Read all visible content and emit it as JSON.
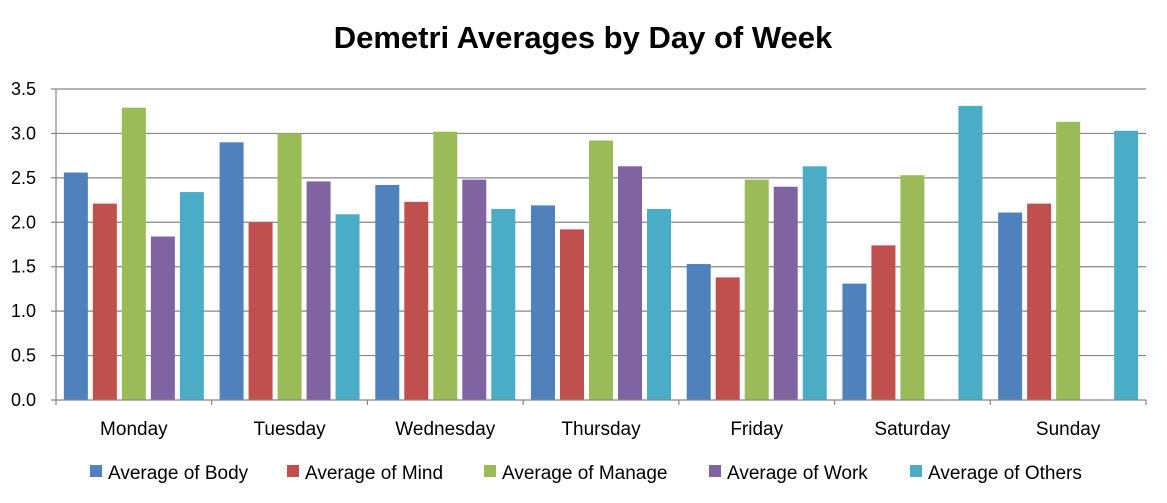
{
  "chart_data": {
    "type": "bar",
    "title": "Demetri Averages by Day of Week",
    "xlabel": "",
    "ylabel": "",
    "ylim": [
      0,
      3.5
    ],
    "yticks": [
      "0.0",
      "0.5",
      "1.0",
      "1.5",
      "2.0",
      "2.5",
      "3.0",
      "3.5"
    ],
    "grid": true,
    "legend_position": "bottom",
    "categories": [
      "Monday",
      "Tuesday",
      "Wednesday",
      "Thursday",
      "Friday",
      "Saturday",
      "Sunday"
    ],
    "series": [
      {
        "name": "Average of Body",
        "color": "#4F81BD",
        "values": [
          2.56,
          2.9,
          2.42,
          2.19,
          1.53,
          1.31,
          2.11
        ]
      },
      {
        "name": "Average of Mind",
        "color": "#C0504D",
        "values": [
          2.21,
          2.0,
          2.23,
          1.92,
          1.38,
          1.74,
          2.21
        ]
      },
      {
        "name": "Average of Manage",
        "color": "#9BBB59",
        "values": [
          3.29,
          3.0,
          3.02,
          2.92,
          2.48,
          2.53,
          3.13
        ]
      },
      {
        "name": "Average of Work",
        "color": "#8064A2",
        "values": [
          1.84,
          2.46,
          2.48,
          2.63,
          2.4,
          null,
          null
        ]
      },
      {
        "name": "Average of Others",
        "color": "#4BACC6",
        "values": [
          2.34,
          2.09,
          2.15,
          2.15,
          2.63,
          3.31,
          3.03
        ]
      }
    ]
  }
}
